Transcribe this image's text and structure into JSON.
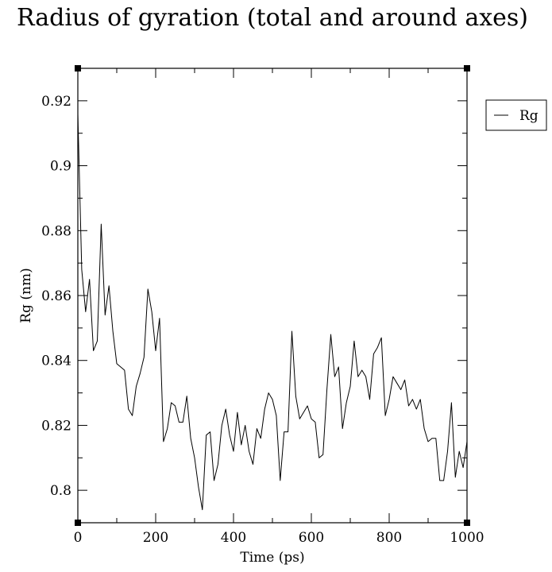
{
  "chart_data": {
    "type": "line",
    "title": "Radius of gyration (total and around axes)",
    "xlabel": "Time (ps)",
    "ylabel": "Rg (nm)",
    "xlim": [
      0,
      1000
    ],
    "ylim": [
      0.79,
      0.93
    ],
    "x_ticks": [
      0,
      200,
      400,
      600,
      800,
      1000
    ],
    "x_tick_labels": [
      "0",
      "200",
      "400",
      "600",
      "800",
      "1000"
    ],
    "y_ticks": [
      0.8,
      0.82,
      0.84,
      0.86,
      0.88,
      0.9,
      0.92
    ],
    "y_tick_labels": [
      "0.8",
      "0.82",
      "0.84",
      "0.86",
      "0.88",
      "0.9",
      "0.92"
    ],
    "grid": false,
    "legend_position": "right",
    "series": [
      {
        "name": "Rg",
        "color": "#000000",
        "x": [
          0,
          10,
          20,
          30,
          40,
          50,
          60,
          70,
          80,
          90,
          100,
          110,
          120,
          130,
          140,
          150,
          160,
          170,
          180,
          190,
          200,
          210,
          220,
          230,
          240,
          250,
          260,
          270,
          280,
          290,
          300,
          310,
          320,
          330,
          340,
          350,
          360,
          370,
          380,
          390,
          400,
          410,
          420,
          430,
          440,
          450,
          460,
          470,
          480,
          490,
          500,
          510,
          520,
          530,
          540,
          550,
          560,
          570,
          580,
          590,
          600,
          610,
          620,
          630,
          640,
          650,
          660,
          670,
          680,
          690,
          700,
          710,
          720,
          730,
          740,
          750,
          760,
          770,
          780,
          790,
          800,
          810,
          820,
          830,
          840,
          850,
          860,
          870,
          880,
          890,
          900,
          910,
          920,
          930,
          940,
          950,
          960,
          970,
          980,
          990,
          1000
        ],
        "values": [
          0.916,
          0.868,
          0.855,
          0.865,
          0.843,
          0.846,
          0.882,
          0.854,
          0.863,
          0.849,
          0.839,
          0.838,
          0.837,
          0.825,
          0.823,
          0.832,
          0.836,
          0.841,
          0.862,
          0.855,
          0.843,
          0.853,
          0.815,
          0.819,
          0.827,
          0.826,
          0.821,
          0.821,
          0.829,
          0.816,
          0.81,
          0.801,
          0.794,
          0.817,
          0.818,
          0.803,
          0.808,
          0.82,
          0.825,
          0.817,
          0.812,
          0.824,
          0.814,
          0.82,
          0.812,
          0.808,
          0.819,
          0.816,
          0.825,
          0.83,
          0.828,
          0.823,
          0.803,
          0.818,
          0.818,
          0.849,
          0.829,
          0.822,
          0.824,
          0.826,
          0.822,
          0.821,
          0.81,
          0.811,
          0.831,
          0.848,
          0.835,
          0.838,
          0.819,
          0.827,
          0.832,
          0.846,
          0.835,
          0.837,
          0.835,
          0.828,
          0.842,
          0.844,
          0.847,
          0.823,
          0.828,
          0.835,
          0.833,
          0.831,
          0.834,
          0.826,
          0.828,
          0.825,
          0.828,
          0.819,
          0.815,
          0.816,
          0.816,
          0.803,
          0.803,
          0.812,
          0.827,
          0.804,
          0.812,
          0.807,
          0.815
        ]
      }
    ]
  }
}
